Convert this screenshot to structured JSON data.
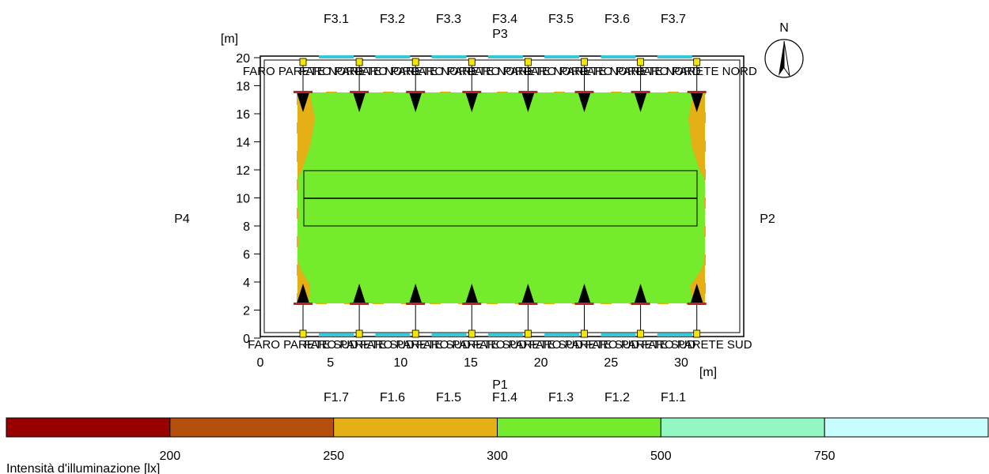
{
  "plan": {
    "axis_unit_label": "[m]",
    "x_ticks": [
      "0",
      "5",
      "10",
      "15",
      "20",
      "25",
      "30"
    ],
    "y_ticks": [
      "0",
      "2",
      "4",
      "6",
      "8",
      "10",
      "12",
      "14",
      "16",
      "18",
      "20"
    ],
    "side_labels": {
      "bottom": "P1",
      "right": "P2",
      "top": "P3",
      "left": "P4"
    },
    "top_window_labels": [
      "F3.1",
      "F3.2",
      "F3.3",
      "F3.4",
      "F3.5",
      "F3.6",
      "F3.7"
    ],
    "bottom_window_labels": [
      "F1.7",
      "F1.6",
      "F1.5",
      "F1.4",
      "F1.3",
      "F1.2",
      "F1.1"
    ],
    "north_label": "N",
    "luminaire_label_north": "FARO PARETE NORD",
    "luminaire_label_south": "FARO PARETE SUD",
    "luminaires_per_side": 8
  },
  "legend": {
    "title": "Intensità d'illuminazione [lx]",
    "thresholds": [
      "200",
      "250",
      "300",
      "500",
      "750"
    ],
    "colors": [
      "#990000",
      "#b4500b",
      "#e5b016",
      "#74eb2c",
      "#93f7c1",
      "#c8fdff"
    ]
  }
}
